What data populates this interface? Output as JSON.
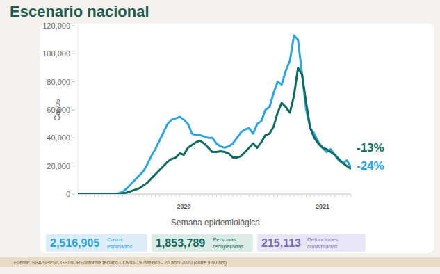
{
  "chart_data": {
    "type": "line",
    "title": "Escenario nacional",
    "y_label": "Casos",
    "x_label": "Semana epidemiológica",
    "categories": [
      null,
      null,
      null,
      null,
      null,
      null,
      null,
      null,
      null,
      null,
      null,
      null,
      null,
      null,
      null,
      null,
      null,
      null,
      null,
      null,
      null,
      null,
      null,
      null,
      null,
      null,
      "2020",
      null,
      null,
      null,
      null,
      null,
      null,
      null,
      null,
      null,
      null,
      null,
      null,
      null,
      null,
      null,
      null,
      null,
      null,
      null,
      null,
      null,
      null,
      null,
      null,
      null,
      null,
      null,
      null,
      null,
      null,
      null,
      null,
      null,
      "2021",
      null,
      null,
      null,
      null,
      null,
      null,
      null
    ],
    "series": [
      {
        "color": "#2ba4e0",
        "values": [
          0,
          0,
          0,
          0,
          0,
          0,
          0,
          0,
          0,
          0,
          500,
          1500,
          4000,
          7000,
          10000,
          13000,
          16000,
          21000,
          27000,
          32000,
          38000,
          44000,
          50000,
          53000,
          54000,
          55000,
          53000,
          50000,
          43000,
          42000,
          42000,
          41000,
          40000,
          40000,
          36000,
          34000,
          33000,
          34000,
          36000,
          40000,
          44000,
          46000,
          47000,
          43000,
          50000,
          52000,
          60000,
          62000,
          72000,
          80000,
          78000,
          88000,
          95000,
          113000,
          110000,
          85000,
          60000,
          47000,
          43000,
          37000,
          33000,
          30000,
          32000,
          28000,
          24000,
          22000,
          24000,
          19000
        ]
      },
      {
        "color": "#0f6b5c",
        "values": [
          0,
          0,
          0,
          0,
          0,
          0,
          0,
          0,
          0,
          0,
          0,
          500,
          1000,
          2000,
          3000,
          4000,
          6000,
          8000,
          11000,
          14000,
          17000,
          20000,
          23000,
          25000,
          26000,
          29000,
          28000,
          33000,
          35000,
          37000,
          38000,
          36000,
          33000,
          30000,
          30000,
          30500,
          30000,
          29000,
          26000,
          26000,
          27000,
          30000,
          33000,
          36000,
          33000,
          37000,
          42000,
          43000,
          48000,
          58000,
          65000,
          62000,
          58000,
          70000,
          90000,
          85000,
          65000,
          47000,
          40000,
          36000,
          33000,
          32000,
          30000,
          28000,
          25000,
          22000,
          20000,
          18000
        ]
      }
    ],
    "ylim": [
      0,
      120000
    ],
    "yticks": [
      0,
      {
        "value": 20000,
        "label": "20,000"
      },
      {
        "value": 40000,
        "label": "40,000"
      },
      {
        "value": 60000,
        "label": "60,000"
      },
      {
        "value": 80000,
        "label": "80,000"
      },
      {
        "value": 100000,
        "label": "100,000"
      },
      {
        "value": 120000,
        "label": "120,000"
      }
    ],
    "grid": false,
    "annotations": [
      {
        "text": "-13%",
        "color": "#0f6b5c"
      },
      {
        "text": "-24%",
        "color": "#2ba4e0"
      }
    ],
    "stats": [
      {
        "value": "2,516,905",
        "label": "Casos estimados",
        "color": "#2ba4e0"
      },
      {
        "value": "1,853,789",
        "label": "Personas recuperadas",
        "color": "#0f6b5c"
      },
      {
        "value": "215,113",
        "label": "Defunciones confirmadas",
        "color": "#7a6fb8"
      }
    ],
    "source": "Fuente: SSA/SPPS/DGE/InDRE/Informe técnico.COVID-19 /México - 26 abril 2020 (corte 9:00 hrs)"
  }
}
